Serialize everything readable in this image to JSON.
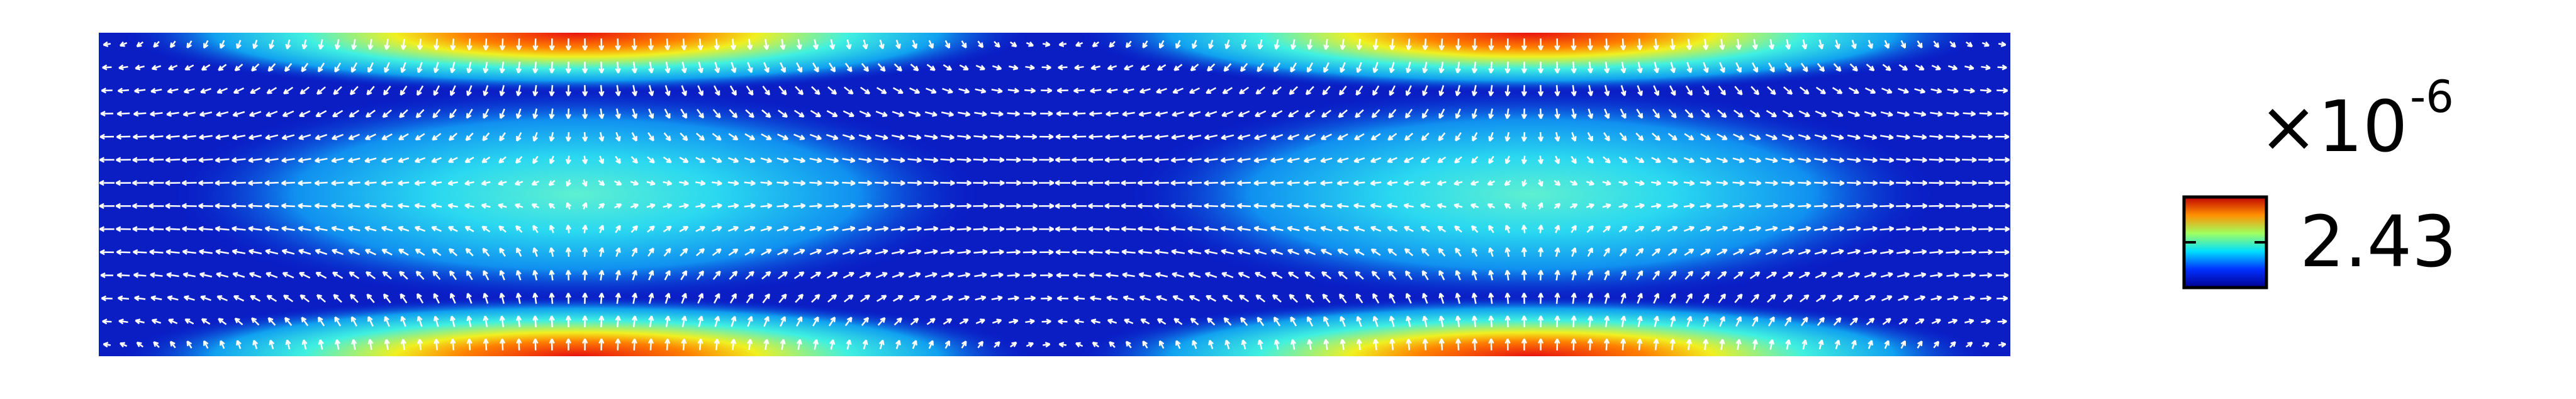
{
  "colorbar": {
    "multiplier": "×10",
    "exponent": "-6",
    "max_label": "2.43"
  }
}
